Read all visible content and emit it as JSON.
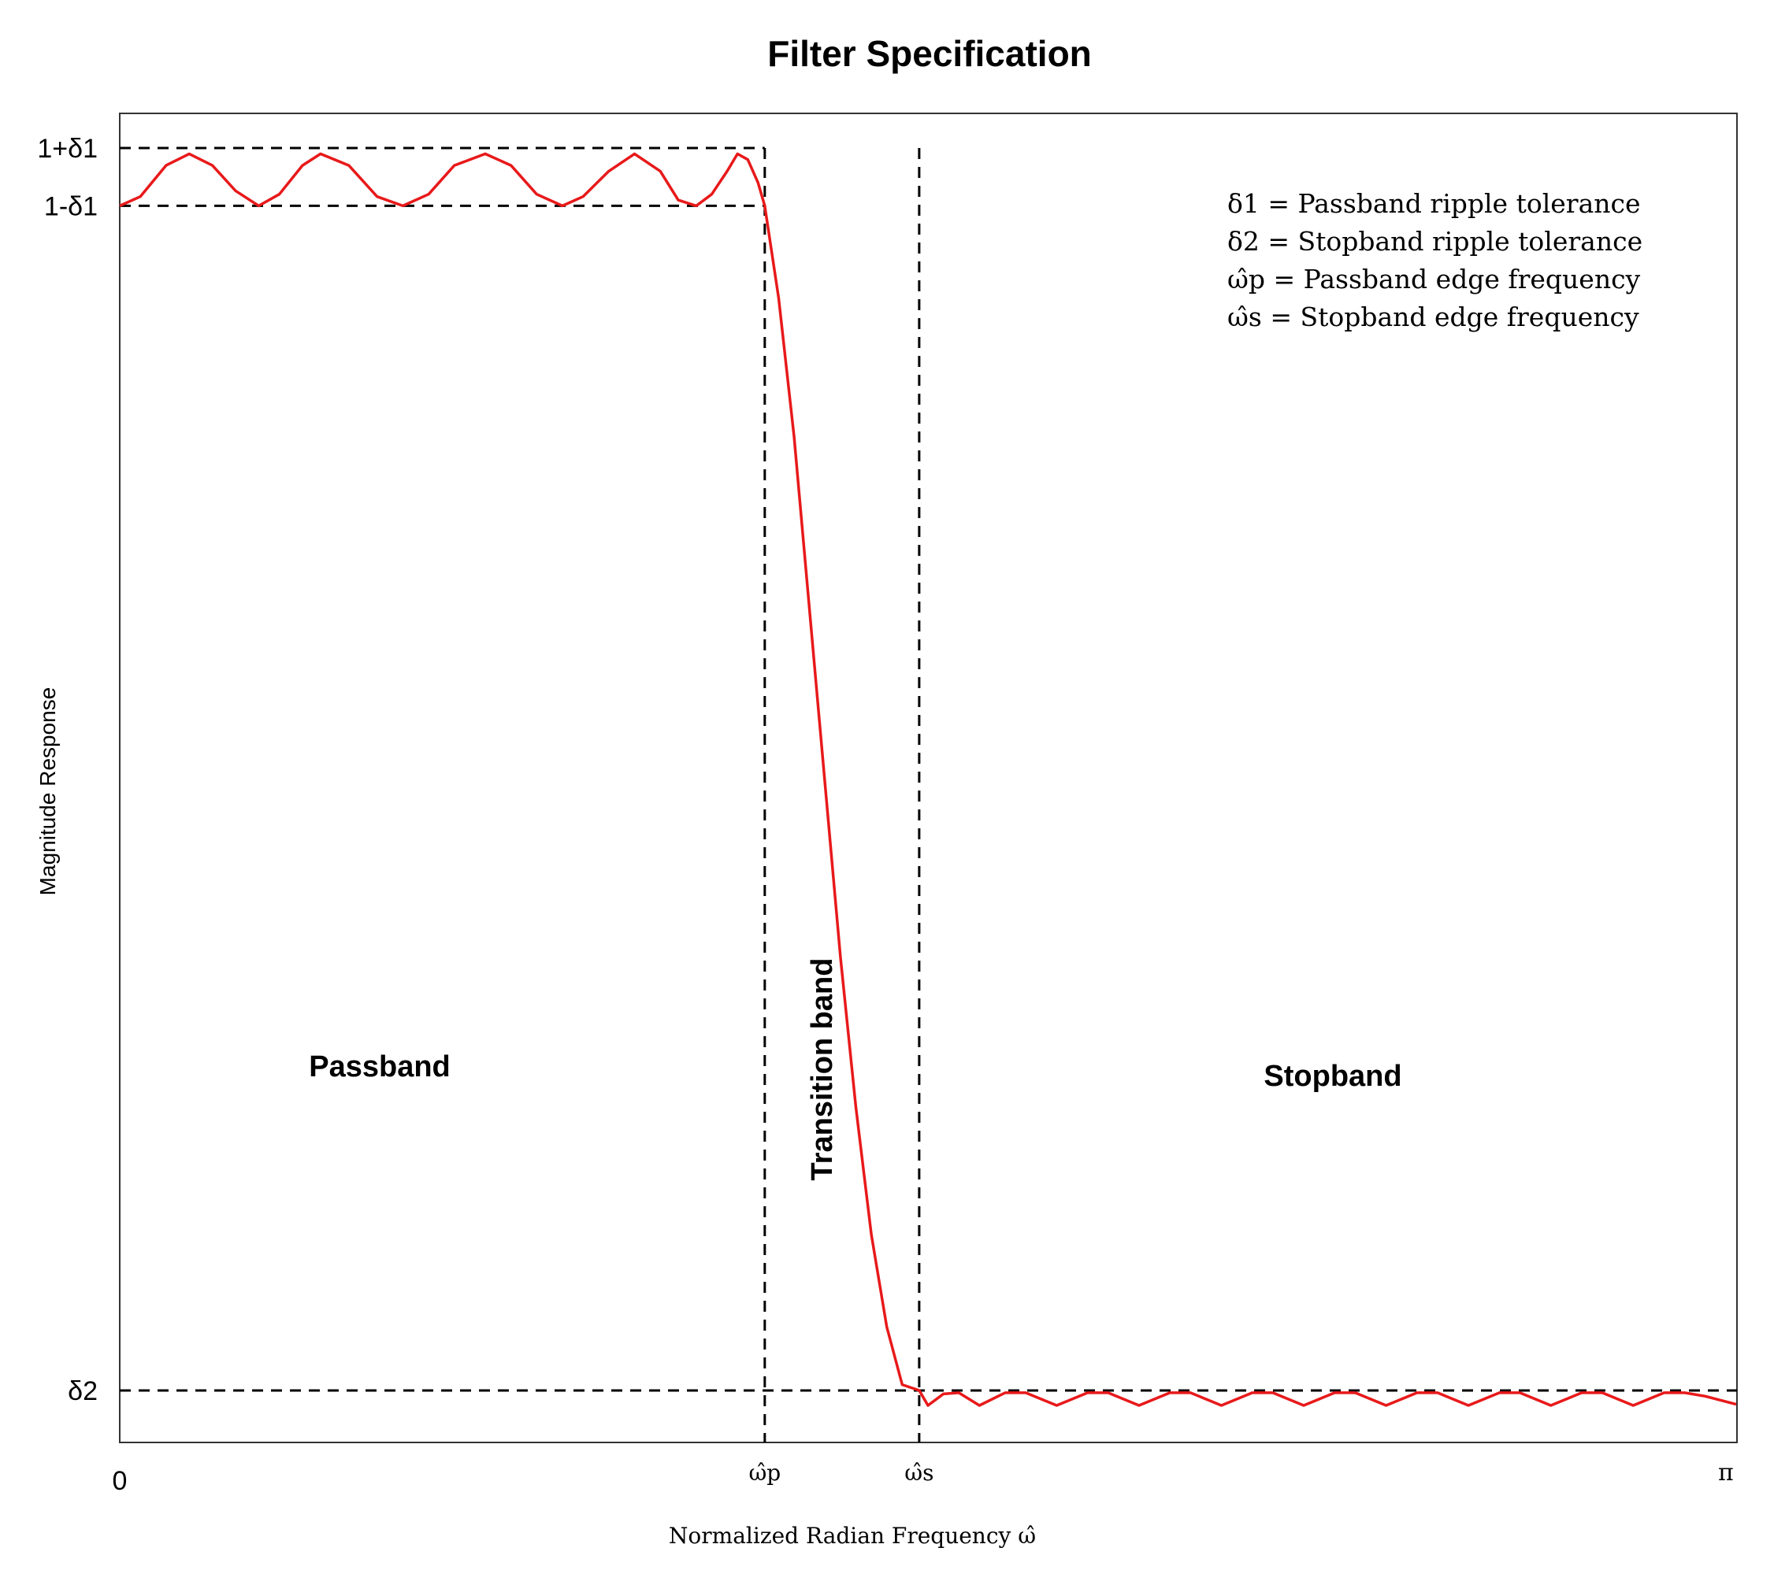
{
  "chart_data": {
    "type": "line",
    "title": "Filter Specification",
    "xlabel": "Normalized Radian Frequency ω̂",
    "ylabel": "Magnitude Response",
    "xlim": [
      0,
      3.14159
    ],
    "ylim": [
      0,
      1.15
    ],
    "grid": false,
    "x_ticks": [
      {
        "x": 0,
        "label": "0"
      },
      {
        "x": 1.253,
        "label": "ω̂p"
      },
      {
        "x": 1.553,
        "label": "ω̂s"
      },
      {
        "x": 3.12,
        "label": "π"
      }
    ],
    "y_ticks": [
      {
        "y": 1.12,
        "label": "1+δ1"
      },
      {
        "y": 1.07,
        "label": "1-δ1"
      },
      {
        "y": 0.045,
        "label": "δ2"
      }
    ],
    "tolerance": {
      "passband_upper": 1.12,
      "passband_lower": 1.07,
      "stopband_upper": 0.045
    },
    "edges": {
      "passband_edge": 1.253,
      "stopband_edge": 1.553
    },
    "series": [
      {
        "color": "#e8191a",
        "x": [
          0,
          0.04,
          0.09,
          0.135,
          0.18,
          0.225,
          0.27,
          0.31,
          0.355,
          0.39,
          0.445,
          0.5,
          0.55,
          0.6,
          0.65,
          0.71,
          0.76,
          0.81,
          0.86,
          0.9,
          0.95,
          1.0,
          1.05,
          1.085,
          1.12,
          1.15,
          1.18,
          1.2,
          1.22,
          1.24,
          1.253,
          1.28,
          1.31,
          1.34,
          1.37,
          1.4,
          1.43,
          1.46,
          1.49,
          1.52,
          1.553,
          1.57,
          1.6,
          1.63,
          1.67,
          1.72,
          1.76,
          1.82,
          1.88,
          1.92,
          1.98,
          2.04,
          2.08,
          2.14,
          2.2,
          2.24,
          2.3,
          2.36,
          2.4,
          2.46,
          2.52,
          2.56,
          2.62,
          2.68,
          2.72,
          2.78,
          2.84,
          2.88,
          2.94,
          3.0,
          3.04,
          3.08,
          3.14
        ],
        "y": [
          1.07,
          1.078,
          1.105,
          1.115,
          1.105,
          1.083,
          1.07,
          1.08,
          1.105,
          1.115,
          1.105,
          1.078,
          1.07,
          1.08,
          1.105,
          1.115,
          1.105,
          1.08,
          1.07,
          1.078,
          1.1,
          1.115,
          1.1,
          1.075,
          1.07,
          1.08,
          1.1,
          1.115,
          1.11,
          1.09,
          1.07,
          0.99,
          0.87,
          0.72,
          0.57,
          0.42,
          0.29,
          0.18,
          0.1,
          0.05,
          0.045,
          0.032,
          0.042,
          0.043,
          0.032,
          0.043,
          0.043,
          0.032,
          0.043,
          0.043,
          0.032,
          0.043,
          0.043,
          0.032,
          0.043,
          0.043,
          0.032,
          0.043,
          0.043,
          0.032,
          0.043,
          0.043,
          0.032,
          0.043,
          0.043,
          0.032,
          0.043,
          0.043,
          0.032,
          0.043,
          0.043,
          0.04,
          0.033
        ]
      }
    ],
    "annotations": {
      "passband": "Passband",
      "transition": "Transition band",
      "stopband": "Stopband"
    },
    "legend_text": [
      "δ1 = Passband ripple tolerance",
      "δ2 = Stopband ripple tolerance",
      "ω̂p = Passband edge frequency",
      "ω̂s = Stopband edge frequency"
    ],
    "legend_position": "top-right"
  }
}
